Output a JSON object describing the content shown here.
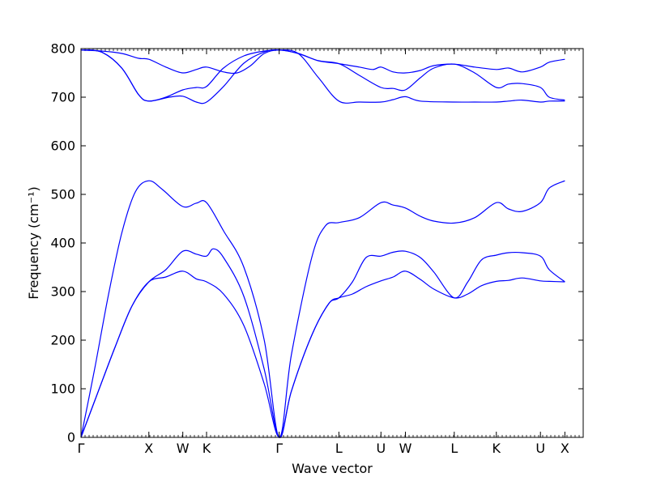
{
  "chart_data": {
    "type": "line",
    "title": "",
    "xlabel": "Wave vector",
    "ylabel": "Frequency (cm⁻¹)",
    "ylim": [
      0,
      800
    ],
    "yticks": [
      "0",
      "100",
      "200",
      "300",
      "400",
      "500",
      "600",
      "700",
      "800"
    ],
    "line_color": "#0000ff",
    "x_range": [
      0,
      7.4
    ],
    "high_symmetry_points": [
      {
        "label": "Γ",
        "x": 0.0
      },
      {
        "label": "X",
        "x": 1.0
      },
      {
        "label": "W",
        "x": 1.5
      },
      {
        "label": "K",
        "x": 1.85
      },
      {
        "label": "Γ",
        "x": 2.92
      },
      {
        "label": "L",
        "x": 3.8
      },
      {
        "label": "U",
        "x": 4.42
      },
      {
        "label": "W",
        "x": 4.78
      },
      {
        "label": "L",
        "x": 5.5
      },
      {
        "label": "K",
        "x": 6.12
      },
      {
        "label": "U",
        "x": 6.77
      },
      {
        "label": "X",
        "x": 7.13
      }
    ],
    "series": [
      {
        "points": [
          [
            0,
            0
          ],
          [
            0.25,
            93
          ],
          [
            0.5,
            185
          ],
          [
            0.75,
            270
          ],
          [
            1.0,
            320
          ],
          [
            1.25,
            330
          ],
          [
            1.5,
            342
          ],
          [
            1.7,
            326
          ],
          [
            1.85,
            320
          ],
          [
            2.1,
            295
          ],
          [
            2.4,
            230
          ],
          [
            2.7,
            110
          ],
          [
            2.92,
            0
          ],
          [
            3.1,
            95
          ],
          [
            3.4,
            210
          ],
          [
            3.65,
            275
          ],
          [
            3.8,
            287
          ],
          [
            4.0,
            295
          ],
          [
            4.2,
            310
          ],
          [
            4.42,
            322
          ],
          [
            4.6,
            330
          ],
          [
            4.78,
            342
          ],
          [
            5.0,
            325
          ],
          [
            5.2,
            305
          ],
          [
            5.5,
            287
          ],
          [
            5.7,
            295
          ],
          [
            5.9,
            312
          ],
          [
            6.12,
            321
          ],
          [
            6.3,
            323
          ],
          [
            6.5,
            328
          ],
          [
            6.77,
            322
          ],
          [
            6.9,
            321
          ],
          [
            7.13,
            320
          ]
        ]
      },
      {
        "points": [
          [
            0,
            0
          ],
          [
            0.25,
            93
          ],
          [
            0.5,
            185
          ],
          [
            0.75,
            270
          ],
          [
            1.0,
            320
          ],
          [
            1.25,
            345
          ],
          [
            1.5,
            383
          ],
          [
            1.7,
            377
          ],
          [
            1.85,
            373
          ],
          [
            1.95,
            388
          ],
          [
            2.1,
            370
          ],
          [
            2.4,
            290
          ],
          [
            2.7,
            140
          ],
          [
            2.92,
            0
          ],
          [
            3.1,
            95
          ],
          [
            3.4,
            210
          ],
          [
            3.65,
            275
          ],
          [
            3.8,
            287
          ],
          [
            4.0,
            320
          ],
          [
            4.2,
            370
          ],
          [
            4.42,
            373
          ],
          [
            4.6,
            381
          ],
          [
            4.78,
            383
          ],
          [
            5.0,
            370
          ],
          [
            5.2,
            340
          ],
          [
            5.5,
            287
          ],
          [
            5.7,
            320
          ],
          [
            5.9,
            365
          ],
          [
            6.12,
            375
          ],
          [
            6.3,
            380
          ],
          [
            6.5,
            380
          ],
          [
            6.77,
            373
          ],
          [
            6.9,
            345
          ],
          [
            7.13,
            320
          ]
        ]
      },
      {
        "points": [
          [
            0,
            0
          ],
          [
            0.2,
            140
          ],
          [
            0.4,
            290
          ],
          [
            0.6,
            420
          ],
          [
            0.8,
            505
          ],
          [
            1.0,
            528
          ],
          [
            1.2,
            510
          ],
          [
            1.5,
            475
          ],
          [
            1.7,
            482
          ],
          [
            1.85,
            483
          ],
          [
            2.1,
            425
          ],
          [
            2.4,
            350
          ],
          [
            2.7,
            200
          ],
          [
            2.92,
            0
          ],
          [
            3.1,
            170
          ],
          [
            3.4,
            370
          ],
          [
            3.6,
            435
          ],
          [
            3.8,
            442
          ],
          [
            4.1,
            452
          ],
          [
            4.42,
            483
          ],
          [
            4.6,
            478
          ],
          [
            4.78,
            472
          ],
          [
            5.0,
            455
          ],
          [
            5.2,
            445
          ],
          [
            5.5,
            441
          ],
          [
            5.8,
            452
          ],
          [
            6.12,
            483
          ],
          [
            6.3,
            470
          ],
          [
            6.5,
            465
          ],
          [
            6.77,
            483
          ],
          [
            6.9,
            513
          ],
          [
            7.13,
            528
          ]
        ]
      },
      {
        "points": [
          [
            0,
            797
          ],
          [
            0.3,
            793
          ],
          [
            0.6,
            760
          ],
          [
            0.85,
            705
          ],
          [
            1.0,
            692
          ],
          [
            1.3,
            700
          ],
          [
            1.5,
            702
          ],
          [
            1.7,
            690
          ],
          [
            1.85,
            690
          ],
          [
            2.1,
            722
          ],
          [
            2.4,
            770
          ],
          [
            2.7,
            793
          ],
          [
            2.92,
            797
          ],
          [
            3.2,
            790
          ],
          [
            3.5,
            740
          ],
          [
            3.8,
            692
          ],
          [
            4.1,
            690
          ],
          [
            4.42,
            690
          ],
          [
            4.6,
            695
          ],
          [
            4.78,
            701
          ],
          [
            5.0,
            692
          ],
          [
            5.5,
            690
          ],
          [
            5.8,
            690
          ],
          [
            6.12,
            690
          ],
          [
            6.3,
            692
          ],
          [
            6.5,
            694
          ],
          [
            6.77,
            690
          ],
          [
            6.9,
            692
          ],
          [
            7.13,
            692
          ]
        ]
      },
      {
        "points": [
          [
            0,
            797
          ],
          [
            0.3,
            793
          ],
          [
            0.6,
            760
          ],
          [
            0.85,
            705
          ],
          [
            1.0,
            692
          ],
          [
            1.25,
            700
          ],
          [
            1.5,
            715
          ],
          [
            1.7,
            720
          ],
          [
            1.85,
            722
          ],
          [
            2.1,
            760
          ],
          [
            2.4,
            785
          ],
          [
            2.7,
            795
          ],
          [
            2.92,
            797
          ],
          [
            3.2,
            790
          ],
          [
            3.5,
            775
          ],
          [
            3.8,
            769
          ],
          [
            4.1,
            745
          ],
          [
            4.42,
            720
          ],
          [
            4.6,
            718
          ],
          [
            4.78,
            715
          ],
          [
            5.0,
            740
          ],
          [
            5.2,
            760
          ],
          [
            5.5,
            768
          ],
          [
            5.8,
            750
          ],
          [
            6.12,
            720
          ],
          [
            6.3,
            727
          ],
          [
            6.5,
            728
          ],
          [
            6.77,
            720
          ],
          [
            6.9,
            700
          ],
          [
            7.13,
            694
          ]
        ]
      },
      {
        "points": [
          [
            0,
            797
          ],
          [
            0.3,
            795
          ],
          [
            0.6,
            790
          ],
          [
            0.85,
            780
          ],
          [
            1.0,
            778
          ],
          [
            1.25,
            762
          ],
          [
            1.5,
            750
          ],
          [
            1.7,
            757
          ],
          [
            1.85,
            762
          ],
          [
            2.1,
            752
          ],
          [
            2.3,
            750
          ],
          [
            2.5,
            765
          ],
          [
            2.7,
            790
          ],
          [
            2.92,
            797
          ],
          [
            3.2,
            790
          ],
          [
            3.5,
            775
          ],
          [
            3.8,
            769
          ],
          [
            4.1,
            762
          ],
          [
            4.3,
            757
          ],
          [
            4.42,
            762
          ],
          [
            4.6,
            752
          ],
          [
            4.78,
            750
          ],
          [
            5.0,
            755
          ],
          [
            5.2,
            765
          ],
          [
            5.5,
            768
          ],
          [
            5.8,
            762
          ],
          [
            6.12,
            757
          ],
          [
            6.3,
            760
          ],
          [
            6.5,
            752
          ],
          [
            6.77,
            762
          ],
          [
            6.9,
            772
          ],
          [
            7.13,
            778
          ]
        ]
      }
    ]
  }
}
